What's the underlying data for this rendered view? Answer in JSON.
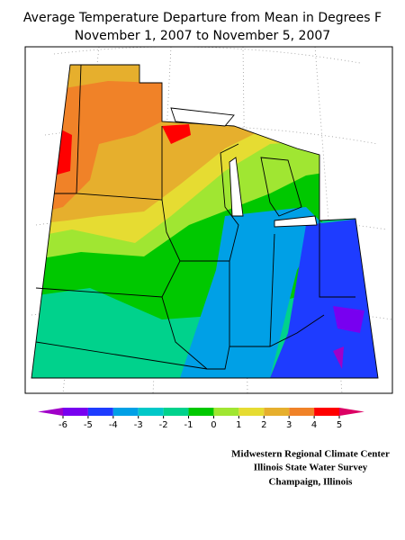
{
  "title": [
    "Average Temperature Departure from Mean in Degrees F",
    "November 1, 2007 to November 5, 2007"
  ],
  "legend": {
    "ticks": [
      -6,
      -5,
      -4,
      -3,
      -2,
      -1,
      0,
      1,
      2,
      3,
      4,
      5
    ],
    "colors": [
      "#a000c8",
      "#7800f0",
      "#1e3cff",
      "#00a0e6",
      "#00c8c8",
      "#00d28c",
      "#00c800",
      "#a0e632",
      "#e6dc32",
      "#e6af2d",
      "#f08228",
      "#ff0000",
      "#dc0064"
    ]
  },
  "credits": [
    "Midwestern Regional Climate Center",
    "Illinois State Water Survey",
    "Champaign, Illinois"
  ]
}
